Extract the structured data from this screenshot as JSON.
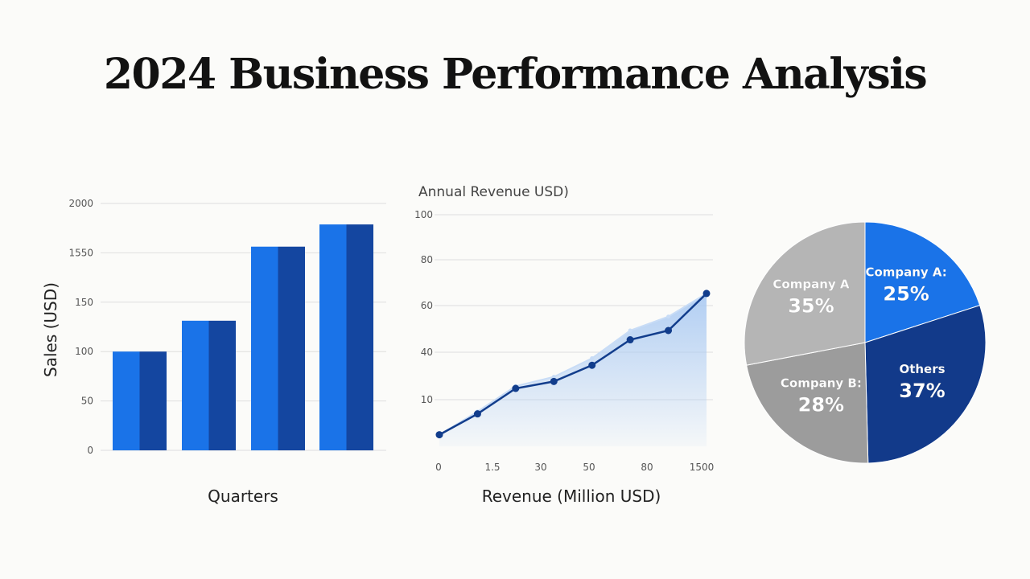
{
  "page": {
    "title": "2024 Business Performance Analysis"
  },
  "colors": {
    "bar_light": "#1a73e8",
    "bar_dark": "#1446a0",
    "line": "#123d8c",
    "area": "#a9c9f2",
    "grid": "#dedede",
    "pie_gray_light": "#b5b5b5",
    "pie_gray_mid": "#9c9c9c",
    "pie_blue": "#1a73e8",
    "pie_navy": "#123a8a"
  },
  "chart_data": [
    {
      "type": "bar",
      "ylabel": "Sales (USD)",
      "xlabel": "Quarters",
      "y_tick_labels": [
        "0",
        "50",
        "100",
        "150",
        "1550",
        "2000"
      ],
      "ylim": [
        0,
        2000
      ],
      "values": [
        800,
        1050,
        1650,
        1830
      ],
      "grid": true
    },
    {
      "type": "area",
      "title": "Annual Revenue USD)",
      "xlabel": "Revenue (Million USD)",
      "x_tick_labels": [
        "0",
        "1.5",
        "30",
        "50",
        "80",
        "1500"
      ],
      "y_tick_labels": [
        "10",
        "40",
        "60",
        "80",
        "100"
      ],
      "points": [
        [
          0,
          5
        ],
        [
          1,
          14
        ],
        [
          2,
          25
        ],
        [
          3,
          28
        ],
        [
          4,
          35
        ],
        [
          5,
          46
        ],
        [
          6,
          50
        ],
        [
          7,
          66
        ]
      ],
      "area_upper": [
        [
          0,
          5
        ],
        [
          1,
          15
        ],
        [
          2,
          26
        ],
        [
          3,
          30
        ],
        [
          4,
          38
        ],
        [
          5,
          50
        ],
        [
          6,
          56
        ],
        [
          7,
          66
        ]
      ],
      "xlim": [
        0,
        7
      ],
      "ylim": [
        0,
        100
      ],
      "grid": true
    },
    {
      "type": "pie",
      "slices": [
        {
          "label": "Company A",
          "percent": 35,
          "color": "#b5b5b5",
          "label_text": "Company A",
          "pct_text": "35%"
        },
        {
          "label": "Company A:",
          "percent": 25,
          "color": "#1a73e8",
          "label_text": "Company A:",
          "pct_text": "25%"
        },
        {
          "label": "Others",
          "percent": 37,
          "color": "#123a8a",
          "label_text": "Others",
          "pct_text": "37%"
        },
        {
          "label": "Company B:",
          "percent": 28,
          "color": "#9c9c9c",
          "label_text": "Company B:",
          "pct_text": "28%"
        }
      ]
    }
  ]
}
